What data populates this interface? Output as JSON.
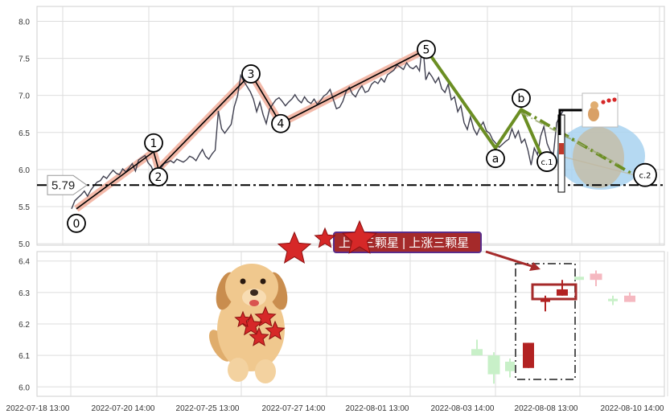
{
  "chart_data": [
    {
      "type": "line",
      "panel": "price",
      "ylim": [
        4.98,
        8.2
      ],
      "yticks": [
        "8.0",
        "7.5",
        "7.0",
        "6.5",
        "6.0",
        "5.5",
        "5.0"
      ],
      "grid": true,
      "series": [
        {
          "values": [
            5.47,
            5.58,
            5.62,
            5.66,
            5.71,
            5.64,
            5.72,
            5.78,
            5.83,
            5.85,
            5.91,
            5.88,
            5.94,
            5.99,
            5.95,
            5.93,
            6.01,
            5.97,
            6.02,
            6.08,
            5.98,
            6.13,
            6.16,
            6.19,
            6.09,
            6.04,
            5.93,
            5.97,
            6.02,
            6.08,
            6.1,
            6.12,
            6.09,
            6.14,
            6.12,
            6.1,
            6.13,
            6.18,
            6.16,
            6.12,
            6.2,
            6.27,
            6.18,
            6.14,
            6.21,
            6.26,
            6.79,
            6.55,
            6.49,
            6.55,
            6.61,
            6.85,
            6.99,
            7.27,
            7.19,
            7.12,
            7.05,
            6.95,
            6.78,
            6.91,
            6.74,
            6.62,
            6.81,
            6.88,
            6.94,
            6.97,
            6.92,
            6.86,
            6.91,
            6.95,
            7.01,
            6.94,
            6.9,
            6.98,
            6.92,
            6.89,
            6.95,
            6.88,
            6.93,
            6.99,
            7.02,
            7.08,
            6.95,
            6.82,
            6.84,
            6.92,
            7.05,
            7.11,
            7.02,
            6.98,
            7.07,
            7.13,
            7.04,
            7.06,
            7.15,
            7.19,
            7.16,
            7.23,
            7.18,
            7.28,
            7.31,
            7.34,
            7.41,
            7.38,
            7.35,
            7.44,
            7.38,
            7.36,
            7.4,
            7.33,
            7.71,
            7.21,
            7.31,
            7.25,
            7.17,
            7.24,
            7.09,
            7.04,
            7.15,
            6.94,
            6.98,
            6.78,
            6.86,
            6.63,
            6.54,
            6.71,
            6.55,
            6.47,
            6.57,
            6.64,
            6.52,
            6.49,
            6.4,
            6.35,
            6.3,
            6.34,
            6.38,
            6.41,
            6.55,
            6.43,
            6.52,
            6.36,
            6.41,
            6.26,
            6.06,
            6.29,
            6.2,
            6.45,
            6.58,
            6.35,
            6.25,
            6.21,
            6.63,
            6.72,
            6.79
          ]
        }
      ],
      "reference_line": {
        "value": 5.79,
        "label": "5.79"
      },
      "waves": {
        "points": [
          {
            "label": "0",
            "value": 5.47
          },
          {
            "label": "1",
            "value": 6.24
          },
          {
            "label": "2",
            "value": 6.01
          },
          {
            "label": "3",
            "value": 7.29
          },
          {
            "label": "4",
            "value": 6.62
          },
          {
            "label": "5",
            "value": 7.62
          },
          {
            "label": "a",
            "value": 6.29
          },
          {
            "label": "b",
            "value": 6.81
          },
          {
            "label": "c.1",
            "value": 6.02
          },
          {
            "label": "c.2",
            "value": 5.84
          }
        ]
      },
      "colors": {
        "line": "#3f3f4f",
        "impulse": "#f2b1a0",
        "correction": "#6b8e23",
        "refline": "#000000",
        "ellipse": "#a8d2f0"
      }
    },
    {
      "type": "candlestick",
      "panel": "volume",
      "ylim": [
        5.97,
        6.43
      ],
      "yticks": [
        "6.4",
        "6.3",
        "6.2",
        "6.1",
        "6.0"
      ],
      "xticks": [
        "2022-07-18 13:00",
        "2022-07-20 14:00",
        "2022-07-25 13:00",
        "2022-07-27 14:00",
        "2022-08-01 13:00",
        "2022-08-03 14:00",
        "2022-08-08 13:00",
        "2022-08-10 14:00"
      ],
      "candles": [
        {
          "open": 6.12,
          "close": 6.1,
          "high": 6.15,
          "low": 6.1,
          "color": "#c8f0c8"
        },
        {
          "open": 6.1,
          "close": 6.04,
          "high": 6.11,
          "low": 6.01,
          "color": "#c8f0c8"
        },
        {
          "open": 6.08,
          "close": 6.05,
          "high": 6.09,
          "low": 6.03,
          "color": "#c8f0c8"
        },
        {
          "open": 6.06,
          "close": 6.14,
          "high": 6.14,
          "low": 6.06,
          "color": "#b22222"
        },
        {
          "open": 6.27,
          "close": 6.28,
          "high": 6.29,
          "low": 6.24,
          "color": "#b22222"
        },
        {
          "open": 6.29,
          "close": 6.31,
          "high": 6.34,
          "low": 6.29,
          "color": "#b22222"
        },
        {
          "open": 6.35,
          "close": 6.34,
          "high": 6.35,
          "low": 6.34,
          "color": "#c8f0c8"
        },
        {
          "open": 6.36,
          "close": 6.34,
          "high": 6.37,
          "low": 6.32,
          "color": "#f5b8c0"
        },
        {
          "open": 6.28,
          "close": 6.28,
          "high": 6.29,
          "low": 6.26,
          "color": "#c8f0c8"
        },
        {
          "open": 6.29,
          "close": 6.27,
          "high": 6.3,
          "low": 6.27,
          "color": "#f5b8c0"
        }
      ],
      "colors": {
        "box": "#555555",
        "highlight": "#a52a2a"
      }
    }
  ],
  "banner": {
    "text": "上涨三颗星 | 上涨三颗星"
  },
  "colors": {
    "banner_bg": "#a52a2a",
    "banner_border": "#5a2d8a",
    "star": "#d62828",
    "ellipse": "#a8d2f0"
  },
  "icons": [
    "dog-mascot-icon",
    "star-icon",
    "mini-dog-thumbnail-icon"
  ]
}
